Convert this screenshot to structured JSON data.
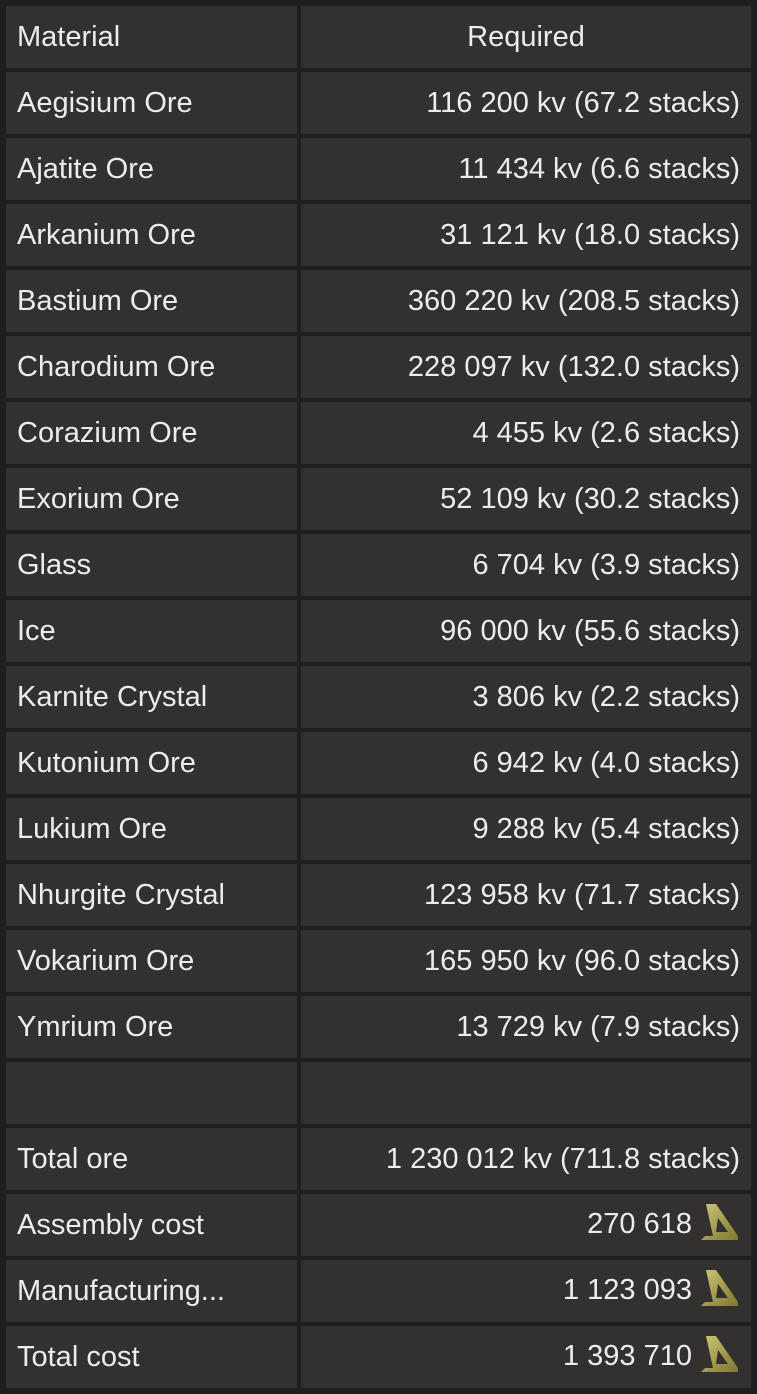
{
  "header": {
    "material": "Material",
    "required": "Required"
  },
  "rows": [
    {
      "material": "Aegisium Ore",
      "required": "116 200 kv (67.2 stacks)"
    },
    {
      "material": "Ajatite Ore",
      "required": "11 434 kv (6.6 stacks)"
    },
    {
      "material": "Arkanium Ore",
      "required": "31 121 kv (18.0 stacks)"
    },
    {
      "material": "Bastium Ore",
      "required": "360 220 kv (208.5 stacks)"
    },
    {
      "material": "Charodium Ore",
      "required": "228 097 kv (132.0 stacks)"
    },
    {
      "material": "Corazium Ore",
      "required": "4 455 kv (2.6 stacks)"
    },
    {
      "material": "Exorium Ore",
      "required": "52 109 kv (30.2 stacks)"
    },
    {
      "material": "Glass",
      "required": "6 704 kv (3.9 stacks)"
    },
    {
      "material": "Ice",
      "required": "96 000 kv (55.6 stacks)"
    },
    {
      "material": "Karnite Crystal",
      "required": "3 806 kv (2.2 stacks)"
    },
    {
      "material": "Kutonium Ore",
      "required": "6 942 kv (4.0 stacks)"
    },
    {
      "material": "Lukium Ore",
      "required": "9 288 kv (5.4 stacks)"
    },
    {
      "material": "Nhurgite Crystal",
      "required": "123 958 kv (71.7 stacks)"
    },
    {
      "material": "Vokarium Ore",
      "required": "165 950 kv (96.0 stacks)"
    },
    {
      "material": "Ymrium Ore",
      "required": "13 729 kv (7.9 stacks)"
    }
  ],
  "totals": {
    "total_ore_label": "Total ore",
    "total_ore_value": "1 230 012 kv (711.8 stacks)",
    "assembly_label": "Assembly cost",
    "assembly_value": "270 618",
    "manufacturing_label": "Manufacturing...",
    "manufacturing_value": "1 123 093",
    "total_cost_label": "Total cost",
    "total_cost_value": "1 393 710"
  },
  "currency_icon": "credits-icon",
  "colors": {
    "background": "#1f1f1f",
    "cell": "#323130",
    "text": "#ececec",
    "currency": "#a9a24a"
  }
}
